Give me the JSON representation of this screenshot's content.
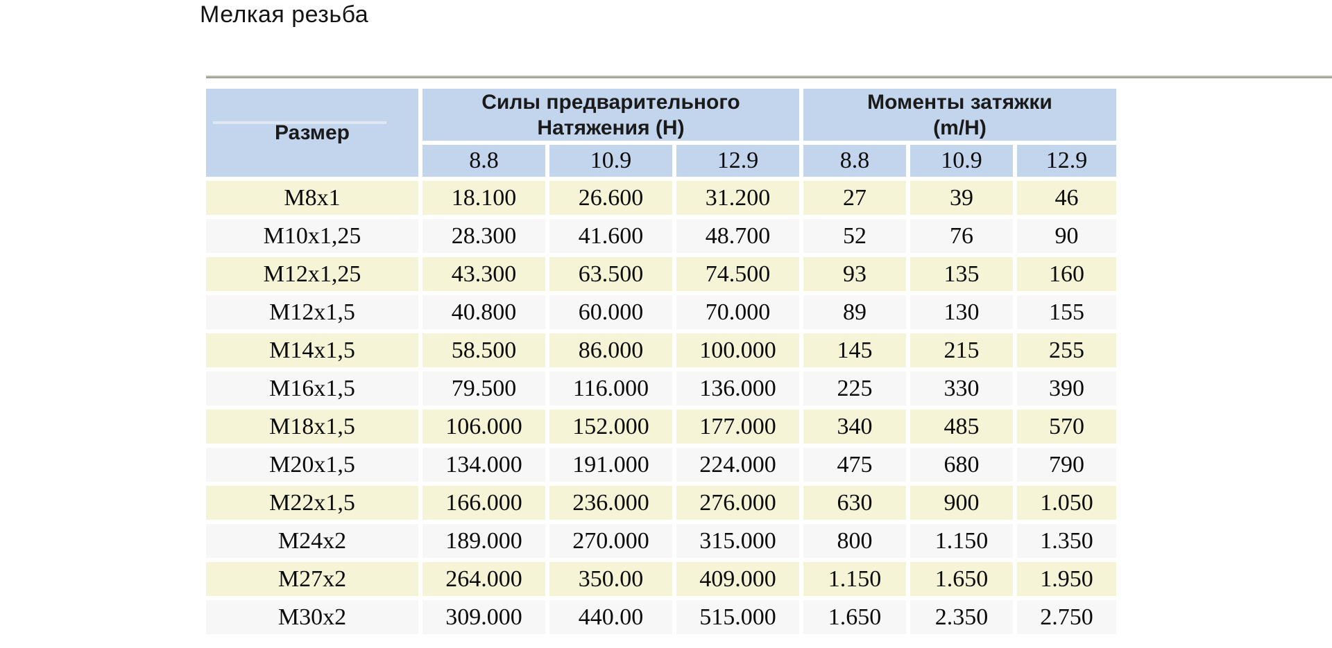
{
  "page": {
    "title": "Мелкая резьба"
  },
  "table": {
    "size_header": "Размер",
    "groups": [
      {
        "line1": "Силы предварительного",
        "line2": "Натяжения (Н)"
      },
      {
        "line1": "Моменты затяжки",
        "line2": "(m/H)"
      }
    ],
    "class_headers": [
      "8.8",
      "10.9",
      "12.9",
      "8.8",
      "10.9",
      "12.9"
    ],
    "rows": [
      {
        "size": "M8x1",
        "values": [
          "18.100",
          "26.600",
          "31.200",
          "27",
          "39",
          "46"
        ]
      },
      {
        "size": "M10x1,25",
        "values": [
          "28.300",
          "41.600",
          "48.700",
          "52",
          "76",
          "90"
        ]
      },
      {
        "size": "M12x1,25",
        "values": [
          "43.300",
          "63.500",
          "74.500",
          "93",
          "135",
          "160"
        ]
      },
      {
        "size": "M12x1,5",
        "values": [
          "40.800",
          "60.000",
          "70.000",
          "89",
          "130",
          "155"
        ]
      },
      {
        "size": "M14x1,5",
        "values": [
          "58.500",
          "86.000",
          "100.000",
          "145",
          "215",
          "255"
        ]
      },
      {
        "size": "M16x1,5",
        "values": [
          "79.500",
          "116.000",
          "136.000",
          "225",
          "330",
          "390"
        ]
      },
      {
        "size": "M18x1,5",
        "values": [
          "106.000",
          "152.000",
          "177.000",
          "340",
          "485",
          "570"
        ]
      },
      {
        "size": "M20x1,5",
        "values": [
          "134.000",
          "191.000",
          "224.000",
          "475",
          "680",
          "790"
        ]
      },
      {
        "size": "M22x1,5",
        "values": [
          "166.000",
          "236.000",
          "276.000",
          "630",
          "900",
          "1.050"
        ]
      },
      {
        "size": "M24x2",
        "values": [
          "189.000",
          "270.000",
          "315.000",
          "800",
          "1.150",
          "1.350"
        ]
      },
      {
        "size": "M27x2",
        "values": [
          "264.000",
          "350.00",
          "409.000",
          "1.150",
          "1.650",
          "1.950"
        ]
      },
      {
        "size": "M30x2",
        "values": [
          "309.000",
          "440.00",
          "515.000",
          "1.650",
          "2.350",
          "2.750"
        ]
      }
    ]
  },
  "colors": {
    "header_blue": "#c3d5ed",
    "row_yellow": "#f5f4d6",
    "row_gray": "#f7f7f7",
    "rule_gray_top": "#c9c9c0",
    "rule_gray_bottom": "#94948c",
    "text": "#0b0b0b"
  }
}
